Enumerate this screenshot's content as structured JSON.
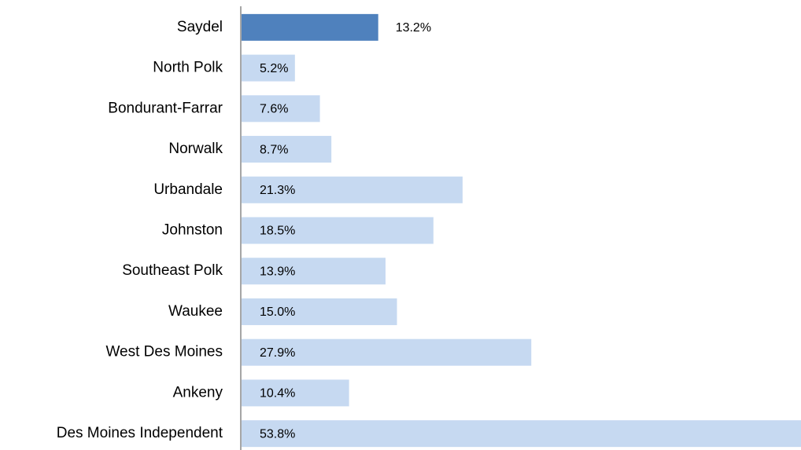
{
  "chart_data": {
    "type": "barh",
    "categories": [
      "Saydel",
      "North Polk",
      "Bondurant-Farrar",
      "Norwalk",
      "Urbandale",
      "Johnston",
      "Southeast Polk",
      "Waukee",
      "West Des Moines",
      "Ankeny",
      "Des Moines Independent"
    ],
    "values": [
      13.2,
      5.2,
      7.6,
      8.7,
      21.3,
      18.5,
      13.9,
      15.0,
      27.9,
      10.4,
      53.8
    ],
    "value_labels": [
      "13.2%",
      "5.2%",
      "7.6%",
      "8.7%",
      "21.3%",
      "18.5%",
      "13.9%",
      "15.0%",
      "27.9%",
      "10.4%",
      "53.8%"
    ],
    "colors": [
      "#4f81bd",
      "#c6d9f1",
      "#c6d9f1",
      "#c6d9f1",
      "#c6d9f1",
      "#c6d9f1",
      "#c6d9f1",
      "#c6d9f1",
      "#c6d9f1",
      "#c6d9f1",
      "#c6d9f1"
    ],
    "highlight_color": "#4f81bd"
  }
}
